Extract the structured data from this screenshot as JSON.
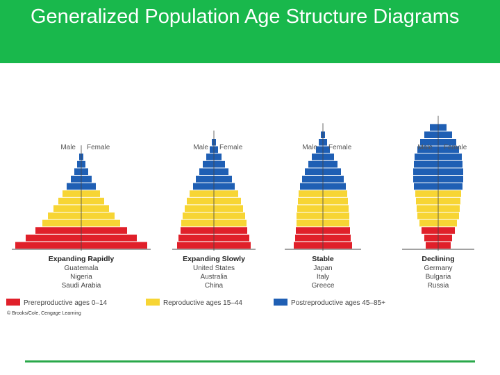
{
  "slide": {
    "title": "Generalized Population Age Structure Diagrams"
  },
  "colors": {
    "header": "#19b84c",
    "prereproductive": "#e0202a",
    "reproductive": "#f7d534",
    "postreproductive": "#1f5fb4",
    "bottom_line": "#2aa84a"
  },
  "diagrams": [
    {
      "id": "expanding-rapidly",
      "name": "Expanding Rapidly",
      "examples": [
        "Guatemala",
        "Nigeria",
        "Saudi Arabia"
      ],
      "male_label": "Male",
      "female_label": "Female",
      "bars": [
        {
          "cohort": 0,
          "group": "prereproductive",
          "value": 95
        },
        {
          "cohort": 1,
          "group": "prereproductive",
          "value": 80
        },
        {
          "cohort": 2,
          "group": "prereproductive",
          "value": 66
        },
        {
          "cohort": 3,
          "group": "reproductive",
          "value": 56
        },
        {
          "cohort": 4,
          "group": "reproductive",
          "value": 48
        },
        {
          "cohort": 5,
          "group": "reproductive",
          "value": 40
        },
        {
          "cohort": 6,
          "group": "reproductive",
          "value": 33
        },
        {
          "cohort": 7,
          "group": "reproductive",
          "value": 27
        },
        {
          "cohort": 8,
          "group": "postreproductive",
          "value": 21
        },
        {
          "cohort": 9,
          "group": "postreproductive",
          "value": 15
        },
        {
          "cohort": 10,
          "group": "postreproductive",
          "value": 10
        },
        {
          "cohort": 11,
          "group": "postreproductive",
          "value": 6
        },
        {
          "cohort": 12,
          "group": "postreproductive",
          "value": 3
        }
      ]
    },
    {
      "id": "expanding-slowly",
      "name": "Expanding Slowly",
      "examples": [
        "United States",
        "Australia",
        "China"
      ],
      "male_label": "Male",
      "female_label": "Female",
      "bars": [
        {
          "cohort": 0,
          "group": "prereproductive",
          "value": 53
        },
        {
          "cohort": 1,
          "group": "prereproductive",
          "value": 51
        },
        {
          "cohort": 2,
          "group": "prereproductive",
          "value": 48
        },
        {
          "cohort": 3,
          "group": "reproductive",
          "value": 47
        },
        {
          "cohort": 4,
          "group": "reproductive",
          "value": 45
        },
        {
          "cohort": 5,
          "group": "reproductive",
          "value": 42
        },
        {
          "cohort": 6,
          "group": "reproductive",
          "value": 39
        },
        {
          "cohort": 7,
          "group": "reproductive",
          "value": 35
        },
        {
          "cohort": 8,
          "group": "postreproductive",
          "value": 30
        },
        {
          "cohort": 9,
          "group": "postreproductive",
          "value": 26
        },
        {
          "cohort": 10,
          "group": "postreproductive",
          "value": 21
        },
        {
          "cohort": 11,
          "group": "postreproductive",
          "value": 16
        },
        {
          "cohort": 12,
          "group": "postreproductive",
          "value": 11
        },
        {
          "cohort": 13,
          "group": "postreproductive",
          "value": 6
        },
        {
          "cohort": 14,
          "group": "postreproductive",
          "value": 3
        }
      ]
    },
    {
      "id": "stable",
      "name": "Stable",
      "examples": [
        "Japan",
        "Italy",
        "Greece"
      ],
      "male_label": "Male",
      "female_label": "Female",
      "bars": [
        {
          "cohort": 0,
          "group": "prereproductive",
          "value": 42
        },
        {
          "cohort": 1,
          "group": "prereproductive",
          "value": 40
        },
        {
          "cohort": 2,
          "group": "prereproductive",
          "value": 39
        },
        {
          "cohort": 3,
          "group": "reproductive",
          "value": 38
        },
        {
          "cohort": 4,
          "group": "reproductive",
          "value": 38
        },
        {
          "cohort": 5,
          "group": "reproductive",
          "value": 37
        },
        {
          "cohort": 6,
          "group": "reproductive",
          "value": 36
        },
        {
          "cohort": 7,
          "group": "reproductive",
          "value": 35
        },
        {
          "cohort": 8,
          "group": "postreproductive",
          "value": 33
        },
        {
          "cohort": 9,
          "group": "postreproductive",
          "value": 30
        },
        {
          "cohort": 10,
          "group": "postreproductive",
          "value": 26
        },
        {
          "cohort": 11,
          "group": "postreproductive",
          "value": 21
        },
        {
          "cohort": 12,
          "group": "postreproductive",
          "value": 16
        },
        {
          "cohort": 13,
          "group": "postreproductive",
          "value": 10
        },
        {
          "cohort": 14,
          "group": "postreproductive",
          "value": 6
        },
        {
          "cohort": 15,
          "group": "postreproductive",
          "value": 3
        }
      ]
    },
    {
      "id": "declining",
      "name": "Declining",
      "examples": [
        "Germany",
        "Bulgaria",
        "Russia"
      ],
      "male_label": "Male",
      "female_label": "Female",
      "bars": [
        {
          "cohort": 0,
          "group": "prereproductive",
          "value": 18
        },
        {
          "cohort": 1,
          "group": "prereproductive",
          "value": 20
        },
        {
          "cohort": 2,
          "group": "prereproductive",
          "value": 24
        },
        {
          "cohort": 3,
          "group": "reproductive",
          "value": 27
        },
        {
          "cohort": 4,
          "group": "reproductive",
          "value": 30
        },
        {
          "cohort": 5,
          "group": "reproductive",
          "value": 31
        },
        {
          "cohort": 6,
          "group": "reproductive",
          "value": 32
        },
        {
          "cohort": 7,
          "group": "reproductive",
          "value": 33
        },
        {
          "cohort": 8,
          "group": "postreproductive",
          "value": 35
        },
        {
          "cohort": 9,
          "group": "postreproductive",
          "value": 36
        },
        {
          "cohort": 10,
          "group": "postreproductive",
          "value": 36
        },
        {
          "cohort": 11,
          "group": "postreproductive",
          "value": 35
        },
        {
          "cohort": 12,
          "group": "postreproductive",
          "value": 34
        },
        {
          "cohort": 13,
          "group": "postreproductive",
          "value": 30
        },
        {
          "cohort": 14,
          "group": "postreproductive",
          "value": 26
        },
        {
          "cohort": 15,
          "group": "postreproductive",
          "value": 20
        },
        {
          "cohort": 16,
          "group": "postreproductive",
          "value": 12
        }
      ]
    }
  ],
  "legend": [
    {
      "group": "prereproductive",
      "label": "Prereproductive ages 0–14"
    },
    {
      "group": "reproductive",
      "label": "Reproductive ages 15–44"
    },
    {
      "group": "postreproductive",
      "label": "Postreproductive ages 45–85+"
    }
  ],
  "copyright": "© Brooks/Cole, Cengage Learning"
}
